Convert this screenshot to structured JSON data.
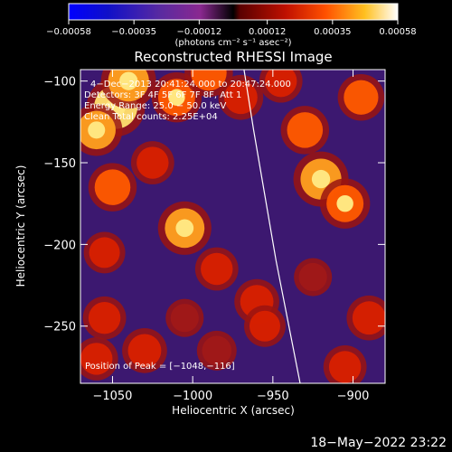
{
  "chart_data": {
    "type": "heatmap",
    "title": "Reconstructed RHESSI Image",
    "xlabel": "Heliocentric X (arcsec)",
    "ylabel": "Heliocentric Y (arcsec)",
    "xlim": [
      -1070,
      -880
    ],
    "ylim": [
      -285,
      -93
    ],
    "x_ticks": [
      {
        "value": -1050,
        "label": "−1050"
      },
      {
        "value": -1000,
        "label": "−1000"
      },
      {
        "value": -950,
        "label": "−950"
      },
      {
        "value": -900,
        "label": "−900"
      }
    ],
    "y_ticks": [
      {
        "value": -100,
        "label": "−100"
      },
      {
        "value": -150,
        "label": "−150"
      },
      {
        "value": -200,
        "label": "−200"
      },
      {
        "value": -250,
        "label": "−250"
      }
    ],
    "colorbar": {
      "min": -0.00058,
      "max": 0.00058,
      "units_label": "(photons cm⁻² s⁻¹ asec⁻²)",
      "ticks": [
        {
          "value": -0.00058,
          "label": "−0.00058"
        },
        {
          "value": -0.00035,
          "label": "−0.00035"
        },
        {
          "value": -0.00012,
          "label": "−0.00012"
        },
        {
          "value": 0.00012,
          "label": "0.00012"
        },
        {
          "value": 0.00035,
          "label": "0.00035"
        },
        {
          "value": 0.00058,
          "label": "0.00058"
        }
      ]
    },
    "annotations": [
      "4−Dec−2013 20:41:24.000 to 20:47:24.000",
      "Detectors: 3F 4F 5F 6F 7F 8F, Att 1",
      "Energy Range: 25.0 − 50.0 keV",
      "Clean     Total counts: 2.25E+04"
    ],
    "peak_text": "Position of Peak = [−1048,−116]",
    "limb_line": [
      {
        "x": -968,
        "y": -93
      },
      {
        "x": -962,
        "y": -130
      },
      {
        "x": -955,
        "y": -170
      },
      {
        "x": -948,
        "y": -210
      },
      {
        "x": -940,
        "y": -250
      },
      {
        "x": -933,
        "y": -285
      }
    ],
    "bright_sources": [
      {
        "x": -1048,
        "y": -116,
        "i": 1.0
      },
      {
        "x": -1040,
        "y": -100,
        "i": 0.9
      },
      {
        "x": -1060,
        "y": -130,
        "i": 0.8
      },
      {
        "x": -1010,
        "y": -110,
        "i": 0.75
      },
      {
        "x": -990,
        "y": -95,
        "i": 0.7
      },
      {
        "x": -970,
        "y": -110,
        "i": 0.6
      },
      {
        "x": -1050,
        "y": -165,
        "i": 0.7
      },
      {
        "x": -1025,
        "y": -150,
        "i": 0.55
      },
      {
        "x": -1005,
        "y": -190,
        "i": 0.85
      },
      {
        "x": -985,
        "y": -215,
        "i": 0.55
      },
      {
        "x": -1055,
        "y": -205,
        "i": 0.5
      },
      {
        "x": -1055,
        "y": -245,
        "i": 0.55
      },
      {
        "x": -1030,
        "y": -265,
        "i": 0.6
      },
      {
        "x": -1060,
        "y": -270,
        "i": 0.55
      },
      {
        "x": -930,
        "y": -130,
        "i": 0.7
      },
      {
        "x": -920,
        "y": -160,
        "i": 0.9
      },
      {
        "x": -905,
        "y": -175,
        "i": 0.75
      },
      {
        "x": -895,
        "y": -110,
        "i": 0.65
      },
      {
        "x": -945,
        "y": -100,
        "i": 0.55
      },
      {
        "x": -960,
        "y": -235,
        "i": 0.6
      },
      {
        "x": -955,
        "y": -250,
        "i": 0.5
      },
      {
        "x": -890,
        "y": -245,
        "i": 0.6
      },
      {
        "x": -905,
        "y": -275,
        "i": 0.55
      },
      {
        "x": -925,
        "y": -220,
        "i": 0.4
      },
      {
        "x": -985,
        "y": -265,
        "i": 0.45
      },
      {
        "x": -1005,
        "y": -245,
        "i": 0.4
      }
    ]
  },
  "footer": {
    "timestamp": "18−May−2022 23:22"
  }
}
